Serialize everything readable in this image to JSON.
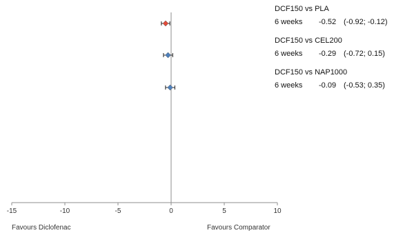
{
  "chart_data": {
    "type": "forest",
    "xlim": [
      -15,
      10
    ],
    "x_ticks": [
      -15,
      -10,
      -5,
      0,
      5,
      10
    ],
    "x_tick_labels": [
      "-15",
      "-10",
      "-5",
      "0",
      "5",
      "10"
    ],
    "reference_line": 0,
    "grid": false,
    "left_label": "Favours  Diclofenac",
    "right_label": "Favours  Comparator",
    "comparisons": [
      {
        "comparison": "DCF150  vs  PLA",
        "duration": "6 weeks",
        "estimate": -0.52,
        "ci_low": -0.92,
        "ci_high": -0.12,
        "estimate_text": "-0.52",
        "ci_text": "(-0.92;  -0.12)",
        "color": "#e04b3a"
      },
      {
        "comparison": "DCF150  vs  CEL200",
        "duration": "6 weeks",
        "estimate": -0.29,
        "ci_low": -0.72,
        "ci_high": 0.15,
        "estimate_text": "-0.29",
        "ci_text": "(-0.72;  0.15)",
        "color": "#4f81bd"
      },
      {
        "comparison": "DCF150  vs  NAP1000",
        "duration": "6 weeks",
        "estimate": -0.09,
        "ci_low": -0.53,
        "ci_high": 0.35,
        "estimate_text": "-0.09",
        "ci_text": "(-0.53;  0.35)",
        "color": "#4f81bd"
      }
    ]
  }
}
